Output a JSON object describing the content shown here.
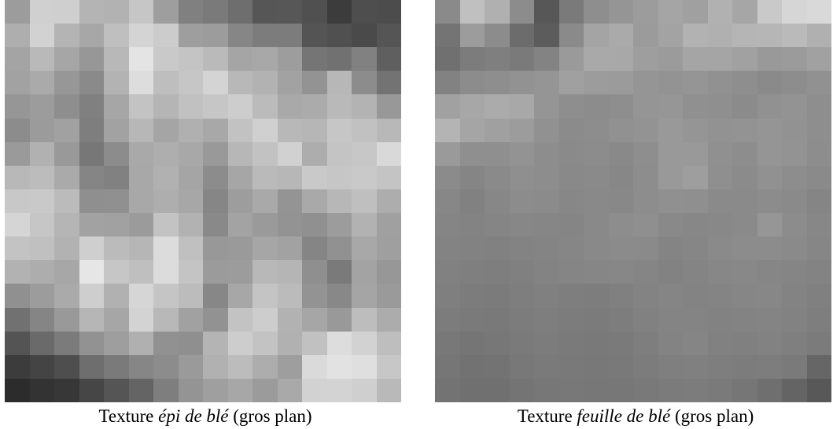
{
  "figures": [
    {
      "caption_prefix": "Texture ",
      "caption_italic": "épi de blé",
      "caption_suffix": " (gros plan)",
      "texture_grid": [
        [
          "#9c9c9c",
          "#d0d0d0",
          "#cfcfcf",
          "#b4b4b4",
          "#b2b2b2",
          "#c6c6c6",
          "#9e9e9e",
          "#808080",
          "#7a7a7a",
          "#6e6e6e",
          "#565656",
          "#575757",
          "#505050",
          "#3c3c3c",
          "#4e4e4e",
          "#4c4c4c"
        ],
        [
          "#aeaeae",
          "#d2d2d2",
          "#b4b4b4",
          "#a7a7a7",
          "#bfbfbf",
          "#d4d4d4",
          "#cccccc",
          "#9e9e9e",
          "#9c9c9c",
          "#868686",
          "#7c7c7c",
          "#7c7c7c",
          "#545454",
          "#505050",
          "#4a4a4a",
          "#555555"
        ],
        [
          "#a4a4a4",
          "#b9b9b9",
          "#a6a6a6",
          "#979797",
          "#b8b8b8",
          "#e4e4e4",
          "#c9c9c9",
          "#c4c4c4",
          "#bababa",
          "#a5a5a5",
          "#a8a8a8",
          "#9d9d9d",
          "#757575",
          "#717171",
          "#818181",
          "#5f5f5f"
        ],
        [
          "#a2a2a2",
          "#aaaaaa",
          "#979797",
          "#8a8a8a",
          "#b3b3b3",
          "#dddddd",
          "#bebebe",
          "#c6c6c6",
          "#d4d4d4",
          "#b8b8b8",
          "#b2b2b2",
          "#a2a2a2",
          "#939393",
          "#b7b7b7",
          "#8c8c8c",
          "#737373"
        ],
        [
          "#969696",
          "#9c9c9c",
          "#8e8e8e",
          "#808080",
          "#a6a6a6",
          "#c3c3c3",
          "#b5b5b5",
          "#c1c1c1",
          "#c6c6c6",
          "#cdcdcd",
          "#bbbbbb",
          "#a9a9a9",
          "#ababab",
          "#b9b9b9",
          "#b3b3b3",
          "#989898"
        ],
        [
          "#8c8c8c",
          "#9b9b9b",
          "#a1a1a1",
          "#7e7e7e",
          "#a2a2a2",
          "#b7b7b7",
          "#a5a5a5",
          "#b0b0b0",
          "#a8a8a8",
          "#c2c2c2",
          "#d0d0d0",
          "#b8b8b8",
          "#b6b6b6",
          "#c6c6c6",
          "#c1c1c1",
          "#b8b8b8"
        ],
        [
          "#9a9a9a",
          "#b1b1b1",
          "#999999",
          "#777777",
          "#8c8c8c",
          "#a9a9a9",
          "#aeaeae",
          "#a8a8a8",
          "#999999",
          "#b7b7b7",
          "#c2c2c2",
          "#d1d1d1",
          "#adadad",
          "#c4c4c4",
          "#c7c7c7",
          "#d9d9d9"
        ],
        [
          "#b8b8b8",
          "#bcbcbc",
          "#aaaaaa",
          "#858585",
          "#818181",
          "#a8a8a8",
          "#b1b1b1",
          "#a5a5a5",
          "#8c8c8c",
          "#a6a6a6",
          "#bababa",
          "#b7b7b7",
          "#c9c9c9",
          "#c6c6c6",
          "#c9c9c9",
          "#c4c4c4"
        ],
        [
          "#c8c8c8",
          "#c9c9c9",
          "#bbbbbb",
          "#8f8f8f",
          "#909090",
          "#a8a8a8",
          "#aeaeae",
          "#a7a7a7",
          "#868686",
          "#9d9d9d",
          "#a9a9a9",
          "#949494",
          "#a9a9a9",
          "#b7b7b7",
          "#bfbfbf",
          "#adadad"
        ],
        [
          "#d5d5d5",
          "#c6c6c6",
          "#b5b5b5",
          "#a2a2a2",
          "#a1a1a1",
          "#9b9b9b",
          "#c3c3c3",
          "#b2b2b2",
          "#898989",
          "#a3a3a3",
          "#9a9a9a",
          "#939393",
          "#909090",
          "#9c9c9c",
          "#b2b2b2",
          "#a0a0a0"
        ],
        [
          "#c3c3c3",
          "#c0c0c0",
          "#b2b2b2",
          "#cfcfcf",
          "#bbbbbb",
          "#b6b6b6",
          "#dcdcdc",
          "#c0c0c0",
          "#989898",
          "#9a9a9a",
          "#a6a6a6",
          "#a2a2a2",
          "#858585",
          "#919191",
          "#a8a8a8",
          "#9f9f9f"
        ],
        [
          "#b2b2b2",
          "#adadad",
          "#a7a7a7",
          "#e6e6e6",
          "#c6c6c6",
          "#bfbfbf",
          "#dcdcdc",
          "#c4c4c4",
          "#9b9b9b",
          "#9c9c9c",
          "#b8b8b8",
          "#b5b5b5",
          "#8f8f8f",
          "#7a7a7a",
          "#a3a3a3",
          "#979797"
        ],
        [
          "#909090",
          "#9c9c9c",
          "#aaaaaa",
          "#cecece",
          "#b1b1b1",
          "#d6d6d6",
          "#c5c5c5",
          "#bcbcbc",
          "#878787",
          "#a7a7a7",
          "#c4c4c4",
          "#bbbbbb",
          "#939393",
          "#888888",
          "#a5a5a5",
          "#9a9a9a"
        ],
        [
          "#717171",
          "#858585",
          "#999999",
          "#b6b6b6",
          "#a6a6a6",
          "#d3d3d3",
          "#b8b8b8",
          "#a1a1a1",
          "#929292",
          "#c3c3c3",
          "#cdcdcd",
          "#b2b2b2",
          "#a6a6a6",
          "#999999",
          "#bdbdbd",
          "#acacac"
        ],
        [
          "#545454",
          "#6a6a6a",
          "#7b7b7b",
          "#929292",
          "#9e9e9e",
          "#b0b0b0",
          "#919191",
          "#8f8f8f",
          "#b4b4b4",
          "#cdcdcd",
          "#c3c3c3",
          "#b1b1b1",
          "#c1c1c1",
          "#dddddd",
          "#d2d2d2",
          "#bebebe"
        ],
        [
          "#3c3c3c",
          "#444444",
          "#4e4e4e",
          "#6e6e6e",
          "#7a7a7a",
          "#868686",
          "#8c8c8c",
          "#9a9a9a",
          "#b1b1b1",
          "#bcbcbc",
          "#adadad",
          "#9e9e9e",
          "#dadada",
          "#e2e2e2",
          "#dfdfdf",
          "#c7c7c7"
        ],
        [
          "#2c2c2c",
          "#333333",
          "#373737",
          "#464646",
          "#555555",
          "#646464",
          "#7e7e7e",
          "#949494",
          "#9f9f9f",
          "#a7a7a7",
          "#9b9b9b",
          "#a9a9a9",
          "#d2d2d2",
          "#d3d3d3",
          "#cfcfcf",
          "#b9b9b9"
        ]
      ]
    },
    {
      "caption_prefix": "Texture ",
      "caption_italic": "feuille de blé",
      "caption_suffix": " (gros plan)",
      "texture_grid": [
        [
          "#8a8a8a",
          "#c0c0c0",
          "#b0b0b0",
          "#8c8c8c",
          "#575757",
          "#7a7a7a",
          "#8e8e8e",
          "#959595",
          "#9c9c9c",
          "#a5a5a5",
          "#a0a0a0",
          "#b1b1b1",
          "#a6a6a6",
          "#c9c9c9",
          "#d6d6d6",
          "#d9d9d9"
        ],
        [
          "#747474",
          "#9c9c9c",
          "#8c8c8c",
          "#6c6c6c",
          "#5c5c5c",
          "#8a8a8a",
          "#a4a4a4",
          "#aaaaaa",
          "#9b9b9b",
          "#a3a3a3",
          "#b2b2b2",
          "#b0b0b0",
          "#b5b5b5",
          "#b6b6b6",
          "#bababa",
          "#b0b0b0"
        ],
        [
          "#707070",
          "#7c7c7c",
          "#7f7f7f",
          "#7a7a7a",
          "#838383",
          "#9a9a9a",
          "#a9a9a9",
          "#a8a8a8",
          "#9e9e9e",
          "#9b9b9b",
          "#a5a5a5",
          "#a5a5a5",
          "#a1a1a1",
          "#999999",
          "#9b9b9b",
          "#a1a1a1"
        ],
        [
          "#828282",
          "#8c8c8c",
          "#8e8e8e",
          "#929292",
          "#959595",
          "#a0a0a0",
          "#9c9c9c",
          "#9b9b9b",
          "#959595",
          "#939393",
          "#959595",
          "#919191",
          "#8e8e8e",
          "#8a8a8a",
          "#8d8d8d",
          "#919191"
        ],
        [
          "#a1a1a1",
          "#a7a7a7",
          "#ababab",
          "#a8a8a8",
          "#959595",
          "#8e8e8e",
          "#8c8c8c",
          "#8e8e8e",
          "#959595",
          "#969696",
          "#909090",
          "#8f8f8f",
          "#8b8b8b",
          "#919191",
          "#939393",
          "#8e8e8e"
        ],
        [
          "#b4b4b4",
          "#a5a5a5",
          "#a0a0a0",
          "#9c9c9c",
          "#919191",
          "#8b8b8b",
          "#8d8d8d",
          "#919191",
          "#939393",
          "#999999",
          "#959595",
          "#929292",
          "#939393",
          "#959595",
          "#929292",
          "#8e8e8e"
        ],
        [
          "#9a9a9a",
          "#8f8f8f",
          "#8f8f8f",
          "#939393",
          "#8d8d8d",
          "#8a8a8a",
          "#8c8c8c",
          "#898989",
          "#8e8e8e",
          "#999999",
          "#999999",
          "#909090",
          "#8d8d8d",
          "#959595",
          "#939393",
          "#8d8d8d"
        ],
        [
          "#8b8b8b",
          "#858585",
          "#8a8a8a",
          "#8f8f8f",
          "#8d8d8d",
          "#898989",
          "#8a8a8a",
          "#878787",
          "#8d8d8d",
          "#999999",
          "#9e9e9e",
          "#8f8f8f",
          "#8b8b8b",
          "#919191",
          "#8d8d8d",
          "#8a8a8a"
        ],
        [
          "#878787",
          "#818181",
          "#878787",
          "#8c8c8c",
          "#8b8b8b",
          "#878787",
          "#898989",
          "#888888",
          "#8d8d8d",
          "#909090",
          "#8f8f8f",
          "#8a8a8a",
          "#8a8a8a",
          "#8c8c8c",
          "#8a8a8a",
          "#858585"
        ],
        [
          "#858585",
          "#838383",
          "#858585",
          "#878787",
          "#868686",
          "#858585",
          "#898989",
          "#8d8d8d",
          "#8f8f8f",
          "#898989",
          "#878787",
          "#888888",
          "#8a8a8a",
          "#969696",
          "#8c8c8c",
          "#878787"
        ],
        [
          "#838383",
          "#828282",
          "#818181",
          "#838383",
          "#848484",
          "#868686",
          "#898989",
          "#8b8b8b",
          "#8a8a8a",
          "#848484",
          "#868686",
          "#8a8a8a",
          "#8c8c8c",
          "#8c8c8c",
          "#8a8a8a",
          "#868686"
        ],
        [
          "#818181",
          "#7f7f7f",
          "#7e7e7e",
          "#808080",
          "#838383",
          "#858585",
          "#868686",
          "#878787",
          "#858585",
          "#828282",
          "#848484",
          "#878787",
          "#888888",
          "#868686",
          "#858585",
          "#838383"
        ],
        [
          "#7f7f7f",
          "#7c7c7c",
          "#7b7b7b",
          "#7e7e7e",
          "#808080",
          "#7e7e7e",
          "#7d7d7d",
          "#808080",
          "#838383",
          "#858585",
          "#838383",
          "#848484",
          "#868686",
          "#878787",
          "#838383",
          "#808080"
        ],
        [
          "#7c7c7c",
          "#7a7a7a",
          "#797979",
          "#7c7c7c",
          "#7e7e7e",
          "#7c7c7c",
          "#7b7b7b",
          "#7d7d7d",
          "#818181",
          "#848484",
          "#848484",
          "#828282",
          "#838383",
          "#848484",
          "#828282",
          "#7e7e7e"
        ],
        [
          "#787878",
          "#757575",
          "#777777",
          "#7a7a7a",
          "#7c7c7c",
          "#7a7a7a",
          "#797979",
          "#7a7a7a",
          "#7e7e7e",
          "#838383",
          "#858585",
          "#818181",
          "#808080",
          "#828282",
          "#7f7f7f",
          "#7b7b7b"
        ],
        [
          "#767676",
          "#727272",
          "#737373",
          "#787878",
          "#7a7a7a",
          "#797979",
          "#787878",
          "#797979",
          "#7c7c7c",
          "#7f7f7f",
          "#808080",
          "#7e7e7e",
          "#7c7c7c",
          "#7d7d7d",
          "#7a7a7a",
          "#666666"
        ],
        [
          "#737373",
          "#707070",
          "#707070",
          "#747474",
          "#777777",
          "#787878",
          "#777777",
          "#777777",
          "#797979",
          "#7b7b7b",
          "#7c7c7c",
          "#7a7a7a",
          "#767676",
          "#6f6f6f",
          "#646464",
          "#585858"
        ]
      ]
    }
  ]
}
